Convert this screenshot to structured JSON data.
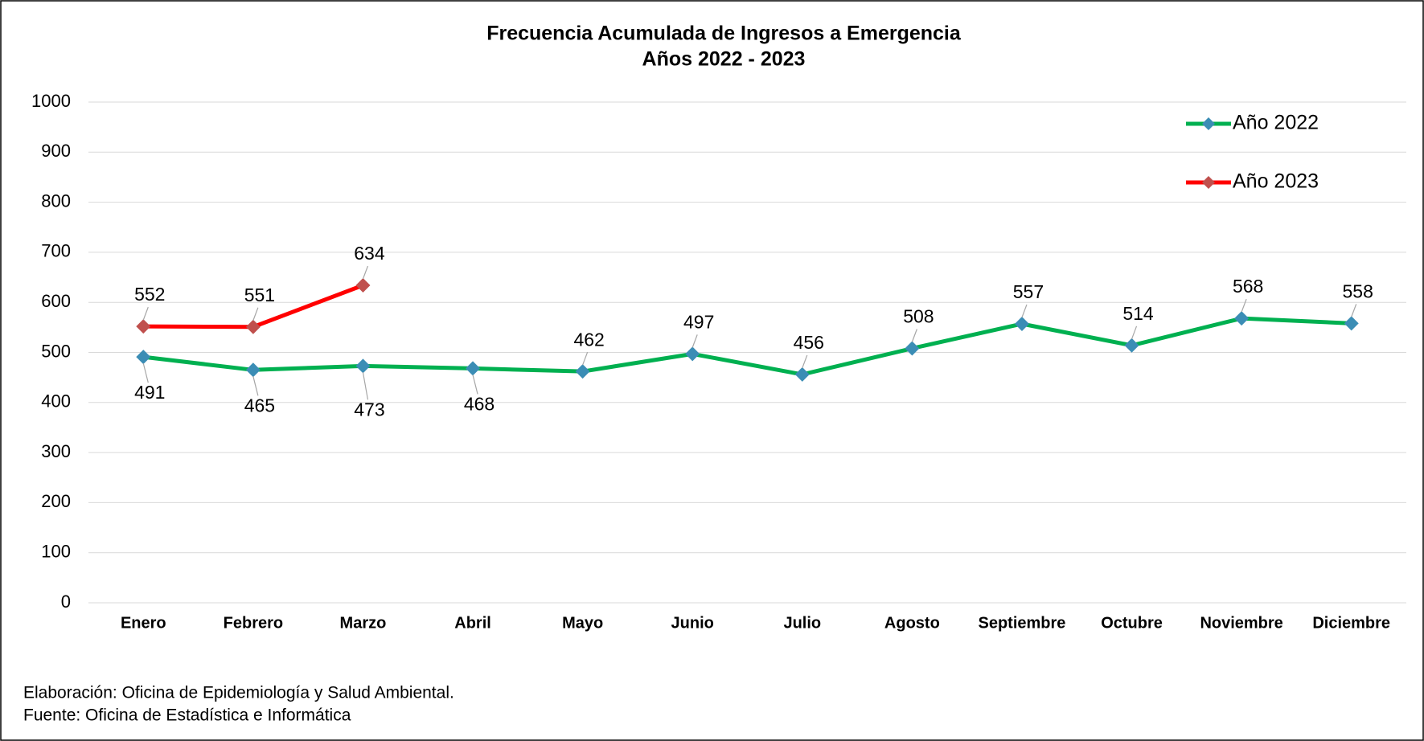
{
  "chart_data": {
    "type": "line",
    "title": "Frecuencia Acumulada de Ingresos a Emergencia",
    "subtitle": "Años 2022 - 2023",
    "categories": [
      "Enero",
      "Febrero",
      "Marzo",
      "Abril",
      "Mayo",
      "Junio",
      "Julio",
      "Agosto",
      "Septiembre",
      "Octubre",
      "Noviembre",
      "Diciembre"
    ],
    "series": [
      {
        "name": "Año 2022",
        "color": "#00b050",
        "marker_color": "#3b8db5",
        "values": [
          491,
          465,
          473,
          468,
          462,
          497,
          456,
          508,
          557,
          514,
          568,
          558
        ]
      },
      {
        "name": "Año 2023",
        "color": "#ff0000",
        "marker_color": "#c0504d",
        "values": [
          552,
          551,
          634,
          null,
          null,
          null,
          null,
          null,
          null,
          null,
          null,
          null
        ]
      }
    ],
    "ylim": [
      0,
      1000
    ],
    "yticks": [
      0,
      100,
      200,
      300,
      400,
      500,
      600,
      700,
      800,
      900,
      1000
    ],
    "grid": true,
    "legend": "top-right",
    "notes": [
      "Elaboración: Oficina de Epidemiología y Salud Ambiental.",
      "Fuente:  Oficina de Estadística e Informática"
    ]
  }
}
